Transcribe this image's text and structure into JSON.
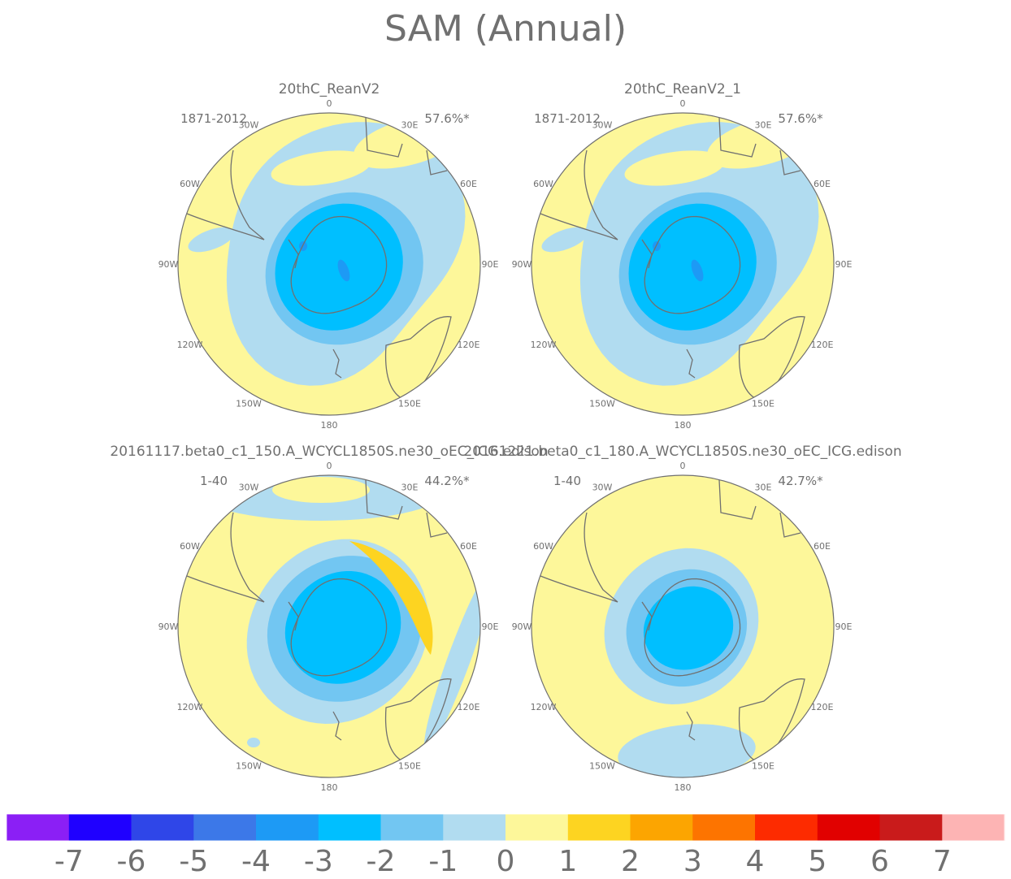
{
  "figure": {
    "title": "SAM (Annual)"
  },
  "chart_data": {
    "type": "polar contour map",
    "projection": "south polar stereographic",
    "colorbar": {
      "levels": [
        "-7",
        "-6",
        "-5",
        "-4",
        "-3",
        "-2",
        "-1",
        "0",
        "1",
        "2",
        "3",
        "4",
        "5",
        "6",
        "7"
      ],
      "colors": [
        "#8b1ff5",
        "#1f00ff",
        "#2f46e8",
        "#3c78e8",
        "#1d9af5",
        "#00bfff",
        "#72c6f2",
        "#b1dcf0",
        "#fdf79a",
        "#fdd421",
        "#fca501",
        "#fd7400",
        "#fd2b00",
        "#e10100",
        "#c91b1b",
        "#fdb4b4"
      ]
    },
    "longitude_labels": [
      "0",
      "30E",
      "60E",
      "90E",
      "120E",
      "150E",
      "180",
      "150W",
      "120W",
      "90W",
      "60W",
      "30W"
    ],
    "panels": [
      {
        "title": "20thC_ReanV2",
        "period": "1871-2012",
        "variance": "57.6%*",
        "pattern": "rean"
      },
      {
        "title": "20thC_ReanV2_1",
        "period": "1871-2012",
        "variance": "57.6%*",
        "pattern": "rean"
      },
      {
        "title": "20161117.beta0_c1_150.A_WCYCL1850S.ne30_oEC_ICG.edison",
        "period": "1-40",
        "variance": "44.2%*",
        "pattern": "beta150"
      },
      {
        "title": "20161221.beta0_c1_180.A_WCYCL1850S.ne30_oEC_ICG.edison",
        "period": "1-40",
        "variance": "42.7%*",
        "pattern": "beta180"
      }
    ]
  }
}
